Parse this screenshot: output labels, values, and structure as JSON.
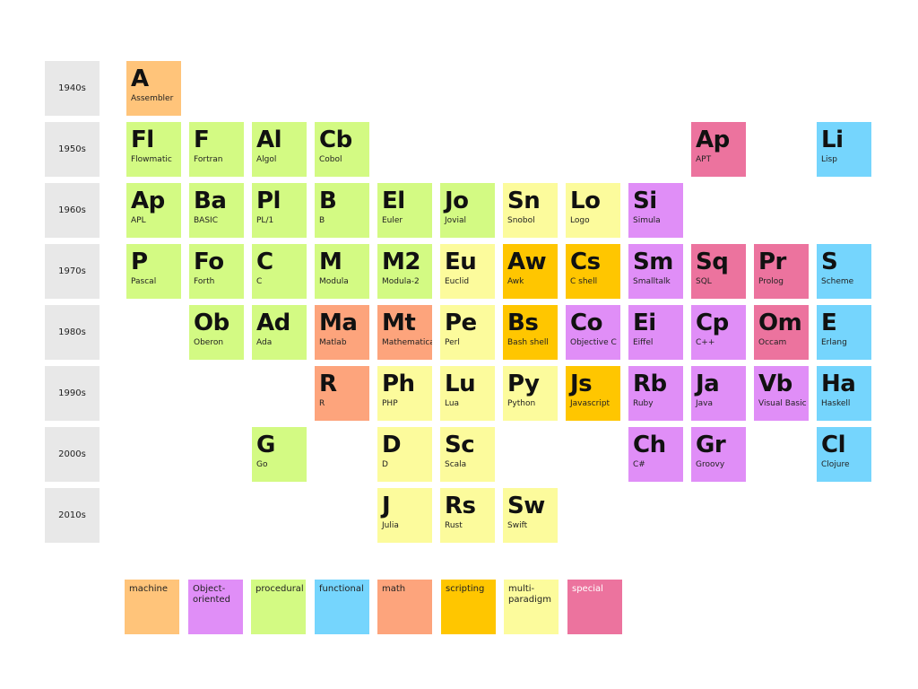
{
  "decades": [
    "1940s",
    "1950s",
    "1960s",
    "1970s",
    "1980s",
    "1990s",
    "2000s",
    "2010s"
  ],
  "colors": {
    "machine": "#ffc47a",
    "oo": "#e08ef7",
    "procedural": "#d3fa83",
    "functional": "#75d5fd",
    "math": "#fda47c",
    "scripting": "#ffc600",
    "multi": "#fcfb9c",
    "special": "#ec739e"
  },
  "legend": [
    {
      "key": "machine",
      "label": "machine"
    },
    {
      "key": "oo",
      "label": "Object-oriented"
    },
    {
      "key": "procedural",
      "label": "procedural"
    },
    {
      "key": "functional",
      "label": "functional"
    },
    {
      "key": "math",
      "label": "math"
    },
    {
      "key": "scripting",
      "label": "scripting"
    },
    {
      "key": "multi",
      "label": "multi-paradigm"
    },
    {
      "key": "special",
      "label": "special"
    }
  ],
  "elements": [
    {
      "sym": "A",
      "name": "Assembler",
      "row": 0,
      "col": 0,
      "cat": "machine"
    },
    {
      "sym": "Fl",
      "name": "Flowmatic",
      "row": 1,
      "col": 0,
      "cat": "procedural"
    },
    {
      "sym": "F",
      "name": "Fortran",
      "row": 1,
      "col": 1,
      "cat": "procedural"
    },
    {
      "sym": "Al",
      "name": "Algol",
      "row": 1,
      "col": 2,
      "cat": "procedural"
    },
    {
      "sym": "Cb",
      "name": "Cobol",
      "row": 1,
      "col": 3,
      "cat": "procedural"
    },
    {
      "sym": "Ap",
      "name": "APT",
      "row": 1,
      "col": 9,
      "cat": "special"
    },
    {
      "sym": "Li",
      "name": "Lisp",
      "row": 1,
      "col": 11,
      "cat": "functional"
    },
    {
      "sym": "Ap",
      "name": "APL",
      "row": 2,
      "col": 0,
      "cat": "procedural"
    },
    {
      "sym": "Ba",
      "name": "BASIC",
      "row": 2,
      "col": 1,
      "cat": "procedural"
    },
    {
      "sym": "Pl",
      "name": "PL/1",
      "row": 2,
      "col": 2,
      "cat": "procedural"
    },
    {
      "sym": "B",
      "name": "B",
      "row": 2,
      "col": 3,
      "cat": "procedural"
    },
    {
      "sym": "El",
      "name": "Euler",
      "row": 2,
      "col": 4,
      "cat": "procedural"
    },
    {
      "sym": "Jo",
      "name": "Jovial",
      "row": 2,
      "col": 5,
      "cat": "procedural"
    },
    {
      "sym": "Sn",
      "name": "Snobol",
      "row": 2,
      "col": 6,
      "cat": "multi"
    },
    {
      "sym": "Lo",
      "name": "Logo",
      "row": 2,
      "col": 7,
      "cat": "multi"
    },
    {
      "sym": "Si",
      "name": "Simula",
      "row": 2,
      "col": 8,
      "cat": "oo"
    },
    {
      "sym": "P",
      "name": "Pascal",
      "row": 3,
      "col": 0,
      "cat": "procedural"
    },
    {
      "sym": "Fo",
      "name": "Forth",
      "row": 3,
      "col": 1,
      "cat": "procedural"
    },
    {
      "sym": "C",
      "name": "C",
      "row": 3,
      "col": 2,
      "cat": "procedural"
    },
    {
      "sym": "M",
      "name": "Modula",
      "row": 3,
      "col": 3,
      "cat": "procedural"
    },
    {
      "sym": "M2",
      "name": "Modula-2",
      "row": 3,
      "col": 4,
      "cat": "procedural"
    },
    {
      "sym": "Eu",
      "name": "Euclid",
      "row": 3,
      "col": 5,
      "cat": "multi"
    },
    {
      "sym": "Aw",
      "name": "Awk",
      "row": 3,
      "col": 6,
      "cat": "scripting"
    },
    {
      "sym": "Cs",
      "name": "C shell",
      "row": 3,
      "col": 7,
      "cat": "scripting"
    },
    {
      "sym": "Sm",
      "name": "Smalltalk",
      "row": 3,
      "col": 8,
      "cat": "oo"
    },
    {
      "sym": "Sq",
      "name": "SQL",
      "row": 3,
      "col": 9,
      "cat": "special"
    },
    {
      "sym": "Pr",
      "name": "Prolog",
      "row": 3,
      "col": 10,
      "cat": "special"
    },
    {
      "sym": "S",
      "name": "Scheme",
      "row": 3,
      "col": 11,
      "cat": "functional"
    },
    {
      "sym": "Ob",
      "name": "Oberon",
      "row": 4,
      "col": 1,
      "cat": "procedural"
    },
    {
      "sym": "Ad",
      "name": "Ada",
      "row": 4,
      "col": 2,
      "cat": "procedural"
    },
    {
      "sym": "Ma",
      "name": "Matlab",
      "row": 4,
      "col": 3,
      "cat": "math"
    },
    {
      "sym": "Mt",
      "name": "Mathematica",
      "row": 4,
      "col": 4,
      "cat": "math"
    },
    {
      "sym": "Pe",
      "name": "Perl",
      "row": 4,
      "col": 5,
      "cat": "multi"
    },
    {
      "sym": "Bs",
      "name": "Bash shell",
      "row": 4,
      "col": 6,
      "cat": "scripting"
    },
    {
      "sym": "Co",
      "name": "Objective C",
      "row": 4,
      "col": 7,
      "cat": "oo"
    },
    {
      "sym": "Ei",
      "name": "Eiffel",
      "row": 4,
      "col": 8,
      "cat": "oo"
    },
    {
      "sym": "Cp",
      "name": "C++",
      "row": 4,
      "col": 9,
      "cat": "oo"
    },
    {
      "sym": "Om",
      "name": "Occam",
      "row": 4,
      "col": 10,
      "cat": "special"
    },
    {
      "sym": "E",
      "name": "Erlang",
      "row": 4,
      "col": 11,
      "cat": "functional"
    },
    {
      "sym": "R",
      "name": "R",
      "row": 5,
      "col": 3,
      "cat": "math"
    },
    {
      "sym": "Ph",
      "name": "PHP",
      "row": 5,
      "col": 4,
      "cat": "multi"
    },
    {
      "sym": "Lu",
      "name": "Lua",
      "row": 5,
      "col": 5,
      "cat": "multi"
    },
    {
      "sym": "Py",
      "name": "Python",
      "row": 5,
      "col": 6,
      "cat": "multi"
    },
    {
      "sym": "Js",
      "name": "Javascript",
      "row": 5,
      "col": 7,
      "cat": "scripting"
    },
    {
      "sym": "Rb",
      "name": "Ruby",
      "row": 5,
      "col": 8,
      "cat": "oo"
    },
    {
      "sym": "Ja",
      "name": "Java",
      "row": 5,
      "col": 9,
      "cat": "oo"
    },
    {
      "sym": "Vb",
      "name": "Visual Basic",
      "row": 5,
      "col": 10,
      "cat": "oo"
    },
    {
      "sym": "Ha",
      "name": "Haskell",
      "row": 5,
      "col": 11,
      "cat": "functional"
    },
    {
      "sym": "G",
      "name": "Go",
      "row": 6,
      "col": 2,
      "cat": "procedural"
    },
    {
      "sym": "D",
      "name": "D",
      "row": 6,
      "col": 4,
      "cat": "multi"
    },
    {
      "sym": "Sc",
      "name": "Scala",
      "row": 6,
      "col": 5,
      "cat": "multi"
    },
    {
      "sym": "Ch",
      "name": "C#",
      "row": 6,
      "col": 8,
      "cat": "oo"
    },
    {
      "sym": "Gr",
      "name": "Groovy",
      "row": 6,
      "col": 9,
      "cat": "oo"
    },
    {
      "sym": "Cl",
      "name": "Clojure",
      "row": 6,
      "col": 11,
      "cat": "functional"
    },
    {
      "sym": "J",
      "name": "Julia",
      "row": 7,
      "col": 4,
      "cat": "multi"
    },
    {
      "sym": "Rs",
      "name": "Rust",
      "row": 7,
      "col": 5,
      "cat": "multi"
    },
    {
      "sym": "Sw",
      "name": "Swift",
      "row": 7,
      "col": 6,
      "cat": "multi"
    }
  ]
}
